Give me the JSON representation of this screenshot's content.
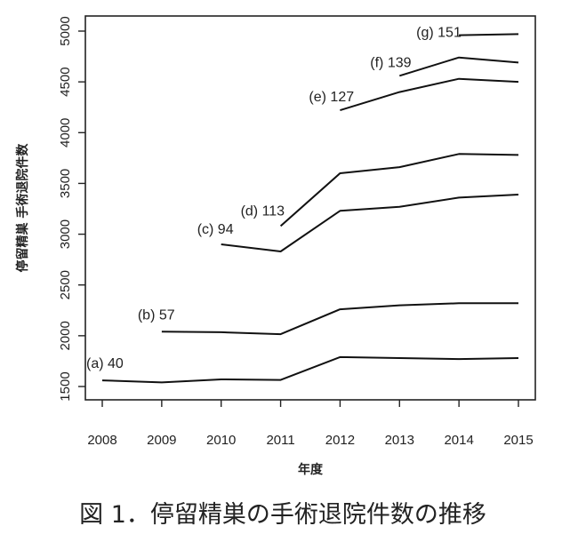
{
  "chart_data": {
    "type": "line",
    "title": "",
    "caption": "図 1．停留精巣の手術退院件数の推移",
    "xlabel": "年度",
    "ylabel": "停留精巣 手術退院件数",
    "x": [
      2008,
      2009,
      2010,
      2011,
      2012,
      2013,
      2014,
      2015
    ],
    "xlim": [
      2008,
      2015
    ],
    "ylim": [
      1500,
      5000
    ],
    "yticks": [
      1500,
      2000,
      2500,
      3000,
      3500,
      4000,
      4500,
      5000
    ],
    "grid": false,
    "legend": "none",
    "series": [
      {
        "name": "(a) 40",
        "x": [
          2008,
          2009,
          2010,
          2011,
          2012,
          2013,
          2014,
          2015
        ],
        "values": [
          1560,
          1540,
          1570,
          1565,
          1790,
          1780,
          1770,
          1780
        ]
      },
      {
        "name": "(b) 57",
        "x": [
          2009,
          2010,
          2011,
          2012,
          2013,
          2014,
          2015
        ],
        "values": [
          2040,
          2035,
          2015,
          2260,
          2300,
          2320,
          2320
        ]
      },
      {
        "name": "(c) 94",
        "x": [
          2010,
          2011,
          2012,
          2013,
          2014,
          2015
        ],
        "values": [
          2900,
          2830,
          3230,
          3270,
          3360,
          3390
        ]
      },
      {
        "name": "(d) 113",
        "x": [
          2011,
          2012,
          2013,
          2014,
          2015
        ],
        "values": [
          3080,
          3600,
          3660,
          3790,
          3780
        ]
      },
      {
        "name": "(e) 127",
        "x": [
          2012,
          2013,
          2014,
          2015
        ],
        "values": [
          4220,
          4400,
          4530,
          4500
        ]
      },
      {
        "name": "(f) 139",
        "x": [
          2013,
          2014,
          2015
        ],
        "values": [
          4560,
          4740,
          4690
        ]
      },
      {
        "name": "(g) 151",
        "x": [
          2014,
          2015
        ],
        "values": [
          4960,
          4970
        ]
      }
    ]
  }
}
